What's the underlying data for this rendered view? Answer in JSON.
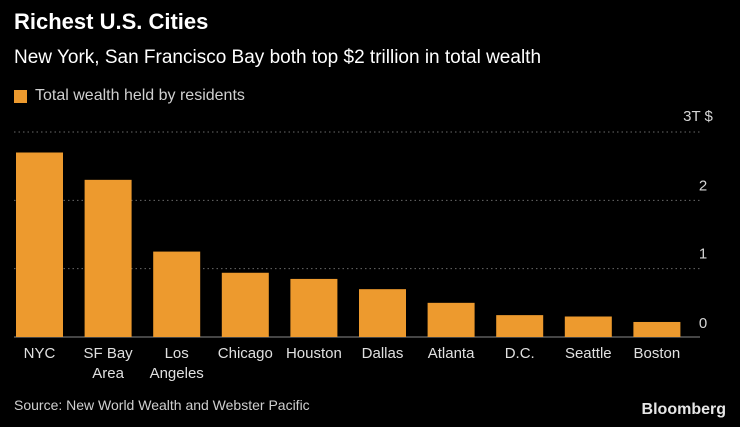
{
  "colors": {
    "background": "#000000",
    "bar": "#ed9a2e",
    "grid": "#6a6a6a",
    "axis": "#8a8a8a"
  },
  "footer": {
    "source": "Source: New World Wealth and Webster Pacific",
    "brand": "Bloomberg"
  },
  "chart_data": {
    "type": "bar",
    "title": "Richest U.S. Cities",
    "subtitle": "New York, San Francisco Bay both top $2 trillion in total wealth",
    "legend": "Total wealth held by residents",
    "categories": [
      [
        "NYC"
      ],
      [
        "SF Bay",
        "Area"
      ],
      [
        "Los",
        "Angeles"
      ],
      [
        "Chicago"
      ],
      [
        "Houston"
      ],
      [
        "Dallas"
      ],
      [
        "Atlanta"
      ],
      [
        "D.C."
      ],
      [
        "Seattle"
      ],
      [
        "Boston"
      ]
    ],
    "values": [
      2.7,
      2.3,
      1.25,
      0.94,
      0.85,
      0.7,
      0.5,
      0.32,
      0.3,
      0.22
    ],
    "ylim": [
      0,
      3
    ],
    "yticks": [
      {
        "value": 0,
        "label": "0"
      },
      {
        "value": 1,
        "label": "1"
      },
      {
        "value": 2,
        "label": "2"
      },
      {
        "value": 3,
        "label": "3T $"
      }
    ],
    "grid": true,
    "legend_position": "top-left",
    "xlabel": "",
    "ylabel": ""
  }
}
